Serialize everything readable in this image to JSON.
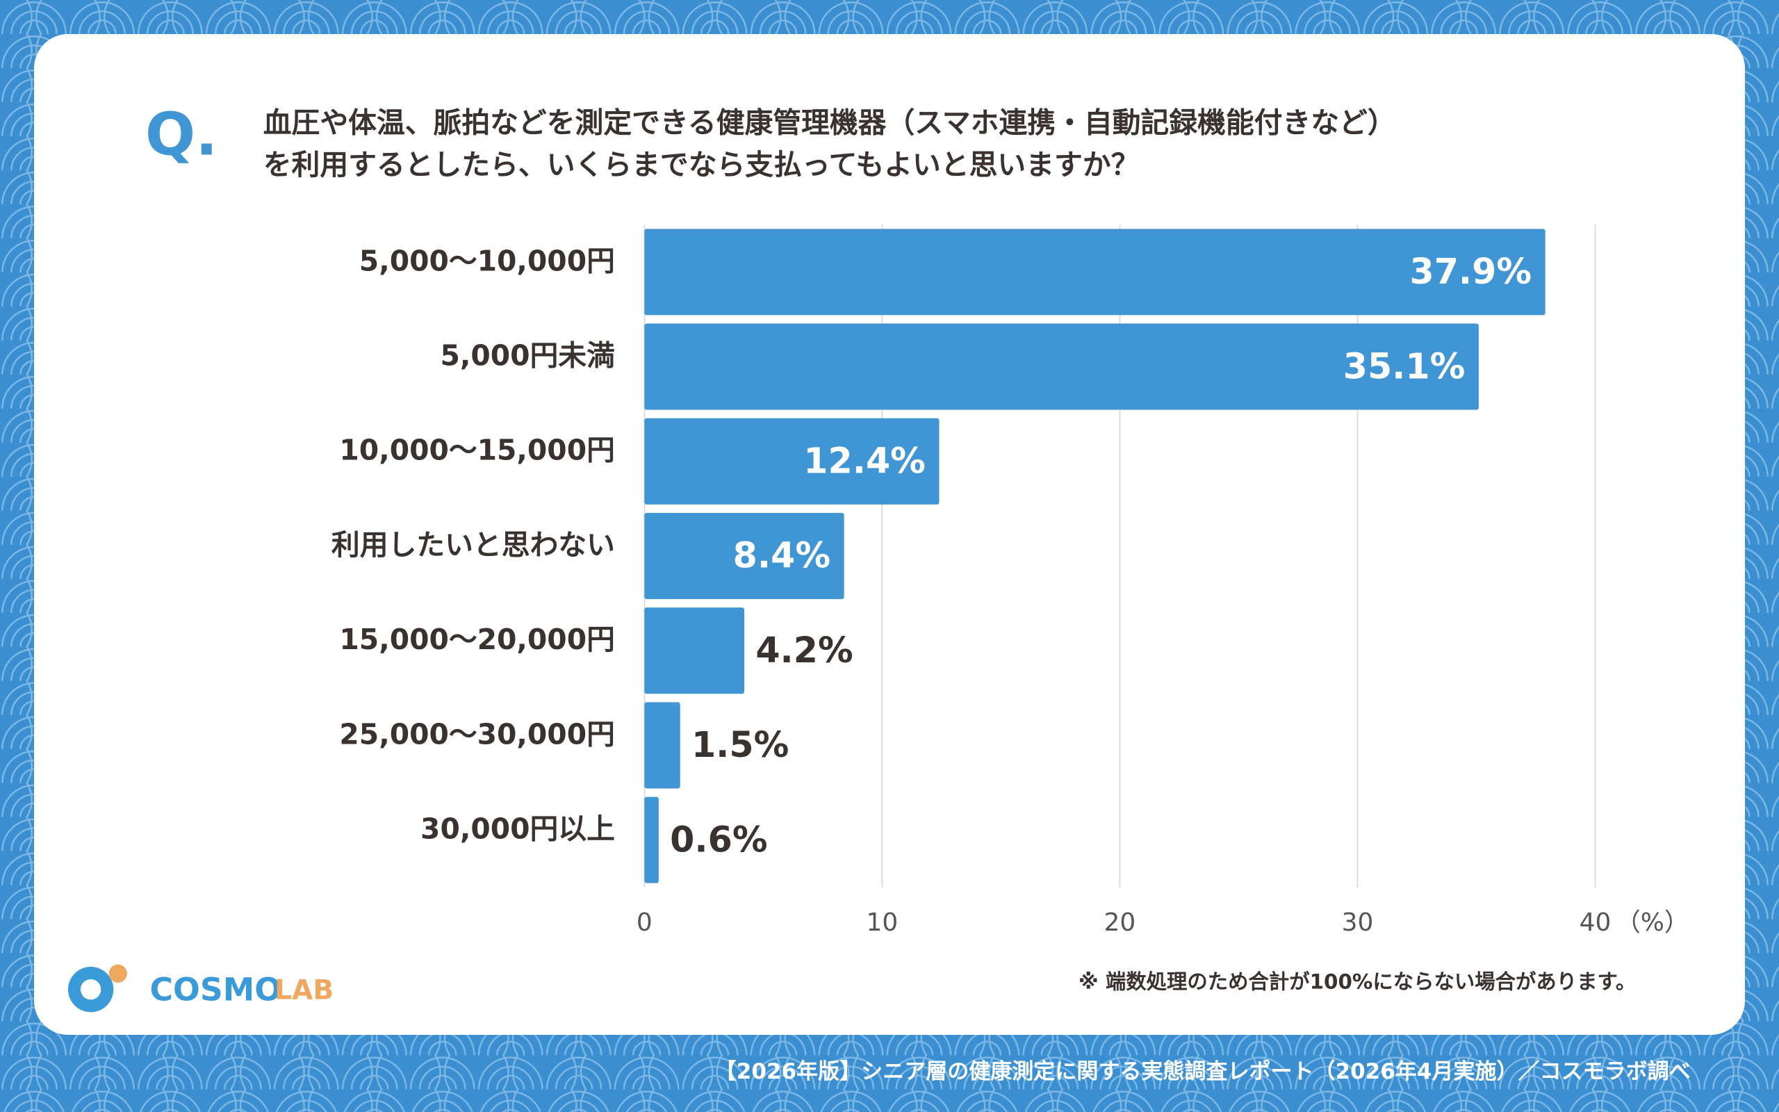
{
  "chart_data": {
    "type": "bar",
    "orientation": "horizontal",
    "title_marker": "Q.",
    "title": [
      "血圧や体温、脈拍などを測定できる健康管理機器（スマホ連携・自動記録機能付きなど）",
      "を利用するとしたら、いくらまでなら支払ってもよいと思いますか？"
    ],
    "categories": [
      "5,000〜10,000円",
      "5,000円未満",
      "10,000〜15,000円",
      "利用したいと思わない",
      "15,000〜20,000円",
      "25,000〜30,000円",
      "30,000円以上"
    ],
    "values": [
      37.9,
      35.1,
      12.4,
      8.4,
      4.2,
      1.5,
      0.6
    ],
    "value_labels": [
      "37.9%",
      "35.1%",
      "12.4%",
      "8.4%",
      "4.2%",
      "1.5%",
      "0.6%"
    ],
    "color": "#4095d4",
    "xlim": [
      0,
      40
    ],
    "xticks": [
      0,
      10,
      20,
      30,
      40
    ],
    "xlabel": "（%）",
    "grid": true,
    "note": "※ 端数処理のため合計が100%にならない場合があります。",
    "source": "【2026年版】シニア層の健康測定に関する実態調査レポート（2026年4月実施）／コスモラボ調べ"
  },
  "logo": {
    "text1": "COSMO",
    "text2": "LAB"
  }
}
